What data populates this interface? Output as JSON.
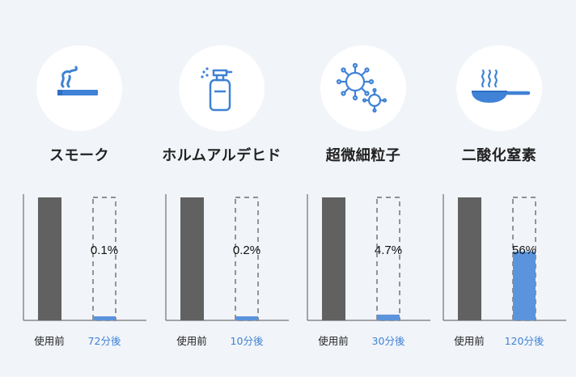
{
  "colors": {
    "before_bar": "#616161",
    "after_bar": "#5b93dc",
    "after_label": "#3f82d6",
    "axis": "#555555",
    "dashed": "#555555"
  },
  "panels": [
    {
      "name": "スモーク",
      "icon": "cigarette-smoke-icon",
      "before_label": "使用前",
      "after_label": "72分後",
      "after_value_text": "0.1%"
    },
    {
      "name": "ホルムアルデヒド",
      "icon": "spray-bottle-icon",
      "before_label": "使用前",
      "after_label": "10分後",
      "after_value_text": "0.2%"
    },
    {
      "name": "超微細粒子",
      "icon": "virus-particle-icon",
      "before_label": "使用前",
      "after_label": "30分後",
      "after_value_text": "4.7%"
    },
    {
      "name": "二酸化窒素",
      "icon": "frying-pan-icon",
      "before_label": "使用前",
      "after_label": "120分後",
      "after_value_text": "56%"
    }
  ],
  "chart_data": [
    {
      "type": "bar",
      "title": "スモーク",
      "categories": [
        "使用前",
        "72分後"
      ],
      "values": [
        100,
        0.1
      ],
      "ylim": [
        0,
        100
      ],
      "unit": "%"
    },
    {
      "type": "bar",
      "title": "ホルムアルデヒド",
      "categories": [
        "使用前",
        "10分後"
      ],
      "values": [
        100,
        0.2
      ],
      "ylim": [
        0,
        100
      ],
      "unit": "%"
    },
    {
      "type": "bar",
      "title": "超微細粒子",
      "categories": [
        "使用前",
        "30分後"
      ],
      "values": [
        100,
        4.7
      ],
      "ylim": [
        0,
        100
      ],
      "unit": "%"
    },
    {
      "type": "bar",
      "title": "二酸化窒素",
      "categories": [
        "使用前",
        "120分後"
      ],
      "values": [
        100,
        56
      ],
      "ylim": [
        0,
        100
      ],
      "unit": "%"
    }
  ]
}
